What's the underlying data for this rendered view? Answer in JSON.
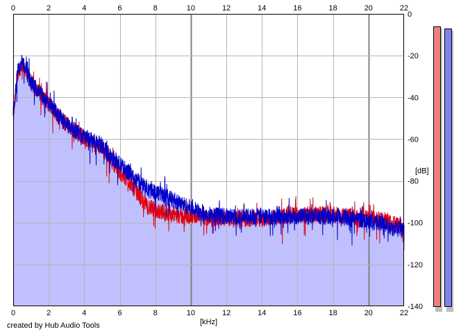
{
  "chart_data": {
    "type": "area",
    "x_unit_label": "[kHz]",
    "y_unit_label": "[dB]",
    "xlim": [
      0,
      22
    ],
    "ylim": [
      -140,
      0
    ],
    "x_ticks": [
      "0",
      "2",
      "4",
      "6",
      "8",
      "10",
      "12",
      "14",
      "16",
      "18",
      "20",
      "22"
    ],
    "y_ticks": [
      "0",
      "-20",
      "-40",
      "-60",
      "-80",
      "-100",
      "-120",
      "-140"
    ],
    "grid": true,
    "colors": {
      "channel_1": "#e0000f",
      "channel_2": "#0000c8",
      "fill": "#c0c0ff",
      "grid_minor": "#b4b4b4",
      "grid_major": "#808080"
    },
    "series": [
      {
        "color": "#e0000f",
        "x": [
          0,
          0.25,
          0.5,
          0.75,
          1,
          1.5,
          2,
          2.5,
          3,
          3.5,
          4,
          4.5,
          5,
          5.5,
          6,
          6.5,
          7,
          7.25,
          7.5,
          8,
          8.5,
          9,
          9.5,
          10,
          11,
          12,
          13,
          14,
          15,
          16,
          17,
          18,
          19,
          20,
          21,
          22
        ],
        "values": [
          -50,
          -28,
          -24,
          -27,
          -33,
          -38,
          -43,
          -48,
          -53,
          -56,
          -59,
          -62,
          -64,
          -70,
          -76,
          -80,
          -86,
          -89,
          -92,
          -94,
          -95,
          -96,
          -97,
          -97,
          -98,
          -98,
          -98,
          -98,
          -97,
          -96,
          -96,
          -96,
          -97,
          -98,
          -99,
          -102
        ]
      },
      {
        "color": "#0000c8",
        "x": [
          0,
          0.25,
          0.5,
          0.75,
          1,
          1.5,
          2,
          2.5,
          3,
          3.5,
          4,
          4.5,
          5,
          5.5,
          6,
          6.5,
          7,
          7.5,
          8,
          8.5,
          9,
          9.5,
          10,
          10.5,
          11,
          12,
          13,
          14,
          15,
          16,
          17,
          18,
          19,
          20,
          21,
          22
        ],
        "values": [
          -48,
          -27,
          -23,
          -27,
          -33,
          -38,
          -43,
          -48,
          -53,
          -56,
          -59,
          -61,
          -63,
          -68,
          -72,
          -76,
          -80,
          -83,
          -85,
          -87,
          -89,
          -91,
          -93,
          -95,
          -96,
          -97,
          -97,
          -97,
          -97,
          -97,
          -97,
          -97,
          -98,
          -99,
          -101,
          -104
        ]
      }
    ],
    "level_meters": [
      {
        "color": "#f08080",
        "value_db": -6
      },
      {
        "color": "#8080f0",
        "value_db": -7
      }
    ]
  },
  "footer": {
    "credit": "created by Hub Audio Tools"
  }
}
